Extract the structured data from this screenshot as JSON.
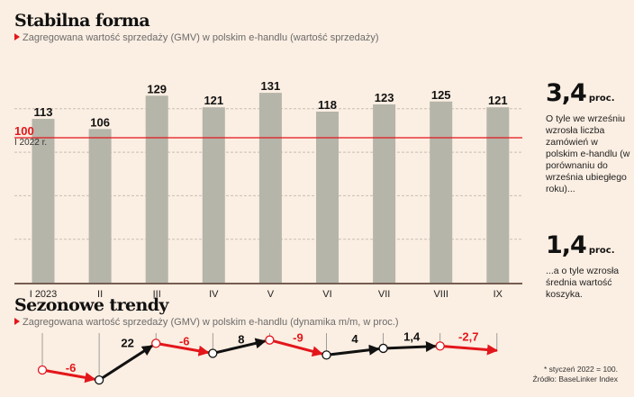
{
  "top_section": {
    "title": "Stabilna forma",
    "subtitle": "Zagregowana wartość sprzedaży (GMV) w polskim e-handlu (wartość sprzedaży)",
    "reference_label": "100",
    "reference_sublabel": "I 2022 r."
  },
  "bottom_section": {
    "title": "Sezonowe trendy",
    "subtitle": "Zagregowana wartość sprzedaży (GMV) w polskim e-handlu (dynamika m/m, w proc.)"
  },
  "side_stats": [
    {
      "value": "3,4",
      "unit": "proc.",
      "text": "O tyle we wrześniu wzrosła liczba zamówień w polskim e-handlu (w porównaniu do września ubiegłego roku)..."
    },
    {
      "value": "1,4",
      "unit": "proc.",
      "text": "...a o tyle wzrosła średnia wartość koszyka."
    }
  ],
  "footnote": {
    "line1": "* styczeń 2022 = 100.",
    "line2": "Źródło: BaseLinker Index"
  },
  "colors": {
    "background": "#fbeee2",
    "bar": "#b5b5aa",
    "reference": "#e3161b",
    "negative": "#e3161b",
    "positive": "#111111",
    "grid": "#c9bfb5"
  },
  "chart_data": [
    {
      "type": "bar",
      "title": "Stabilna forma",
      "subtitle": "Zagregowana wartość sprzedaży (GMV) w polskim e-handlu (wartość sprzedaży)",
      "categories": [
        "I 2023",
        "II",
        "III",
        "IV",
        "V",
        "VI",
        "VII",
        "VIII",
        "IX"
      ],
      "values": [
        113,
        106,
        129,
        121,
        131,
        118,
        123,
        125,
        121
      ],
      "value_labels": [
        "113",
        "106",
        "129",
        "121",
        "131",
        "118",
        "123",
        "125",
        "121"
      ],
      "reference_line": {
        "value": 100,
        "label": "100",
        "sublabel": "I 2022 r."
      },
      "ylim": [
        0,
        140
      ],
      "gridlines": [
        30,
        60,
        90,
        120
      ],
      "grid": true,
      "xlabel": "",
      "ylabel": ""
    },
    {
      "type": "line",
      "title": "Sezonowe trendy",
      "subtitle": "Zagregowana wartość sprzedaży (GMV) w polskim e-handlu (dynamika m/m, w proc.)",
      "segments": [
        {
          "from": "I",
          "to": "II",
          "value": -6,
          "label": "-6"
        },
        {
          "from": "II",
          "to": "III",
          "value": 22,
          "label": "22"
        },
        {
          "from": "III",
          "to": "IV",
          "value": -6,
          "label": "-6"
        },
        {
          "from": "IV",
          "to": "V",
          "value": 8,
          "label": "8"
        },
        {
          "from": "V",
          "to": "VI",
          "value": -9,
          "label": "-9"
        },
        {
          "from": "VI",
          "to": "VII",
          "value": 4,
          "label": "4"
        },
        {
          "from": "VII",
          "to": "VIII",
          "value": 1.4,
          "label": "1,4"
        },
        {
          "from": "VIII",
          "to": "IX",
          "value": -2.7,
          "label": "-2,7"
        }
      ]
    }
  ]
}
